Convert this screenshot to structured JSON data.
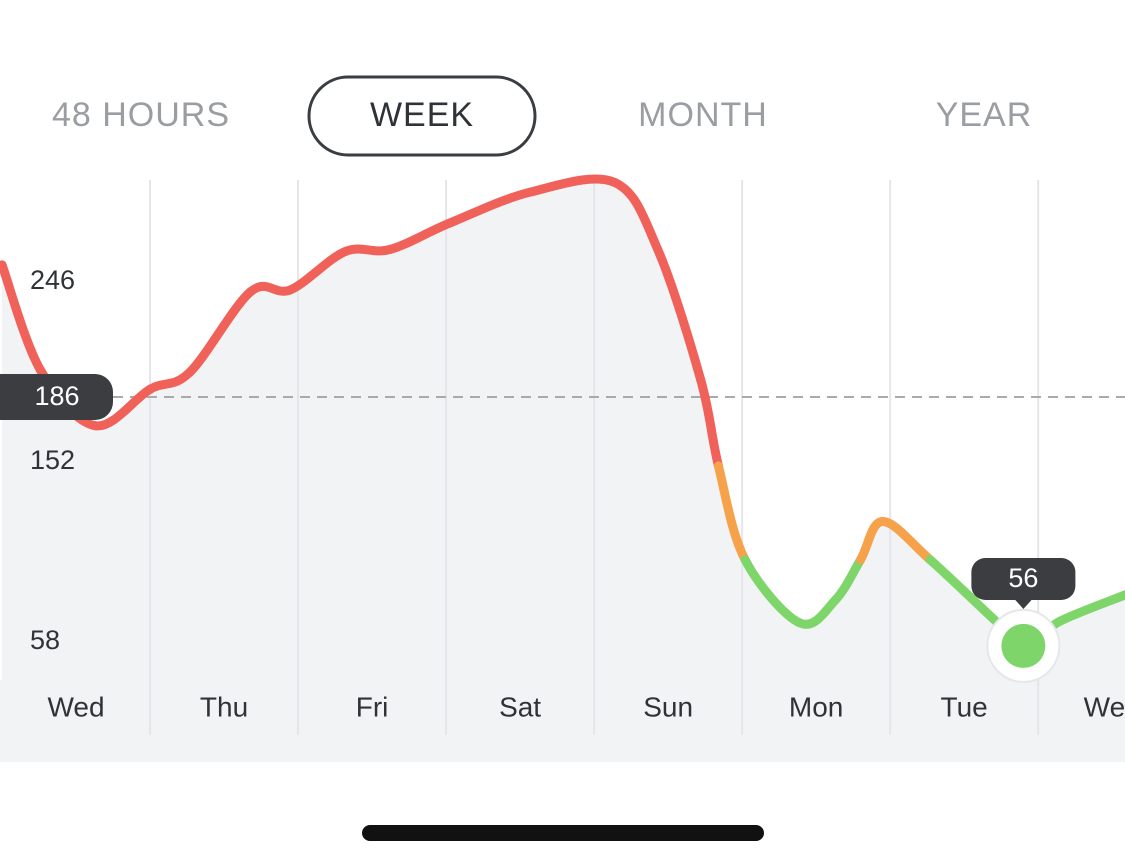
{
  "tabs": {
    "items": [
      "48 HOURS",
      "WEEK",
      "MONTH",
      "YEAR"
    ],
    "selected": 1
  },
  "chart_data": {
    "type": "line",
    "x": [
      0,
      0.26,
      0.63,
      1.0,
      1.27,
      1.68,
      1.95,
      2.32,
      2.62,
      3.03,
      3.57,
      4.14,
      4.43,
      4.72,
      4.84,
      5.02,
      5.39,
      5.63,
      5.8,
      5.95,
      6.27,
      6.74,
      6.9,
      7.15,
      7.6
    ],
    "series": [
      {
        "values": [
          255,
          200,
          171,
          190,
          199,
          241,
          242,
          262,
          263,
          277,
          293,
          298,
          263,
          195,
          150,
          101,
          68,
          80,
          101,
          121,
          101,
          67,
          56,
          69,
          83
        ],
        "segment_colors": [
          "#f0615a",
          "#f0615a",
          "#f0615a",
          "#f0615a",
          "#f0615a",
          "#f0615a",
          "#f0615a",
          "#f0615a",
          "#f0615a",
          "#f0615a",
          "#f0615a",
          "#f0615a",
          "#f0615a",
          "#f0615a",
          "#f5a24b",
          "#7ed66a",
          "#7ed66a",
          "#7ed66a",
          "#f5a24b",
          "#f5a24b",
          "#7ed66a",
          "#7ed66a",
          "#7ed66a",
          "#7ed66a"
        ]
      }
    ],
    "xlim": [
      0,
      7.6
    ],
    "xticks": [
      {
        "value": 0.5,
        "label": "Wed"
      },
      {
        "value": 1.5,
        "label": "Thu"
      },
      {
        "value": 2.5,
        "label": "Fri"
      },
      {
        "value": 3.5,
        "label": "Sat"
      },
      {
        "value": 4.5,
        "label": "Sun"
      },
      {
        "value": 5.5,
        "label": "Mon"
      },
      {
        "value": 6.5,
        "label": "Tue"
      },
      {
        "value": 7.5,
        "label": "Wed"
      }
    ],
    "ylim": [
      10,
      304
    ],
    "yticks": [
      58,
      152,
      246
    ],
    "reference_line": {
      "value": 186,
      "color": "#aaaaaa"
    },
    "selected_point": {
      "index": 22,
      "color": "#7ed66a"
    },
    "area_color": "#f2f3f5"
  }
}
